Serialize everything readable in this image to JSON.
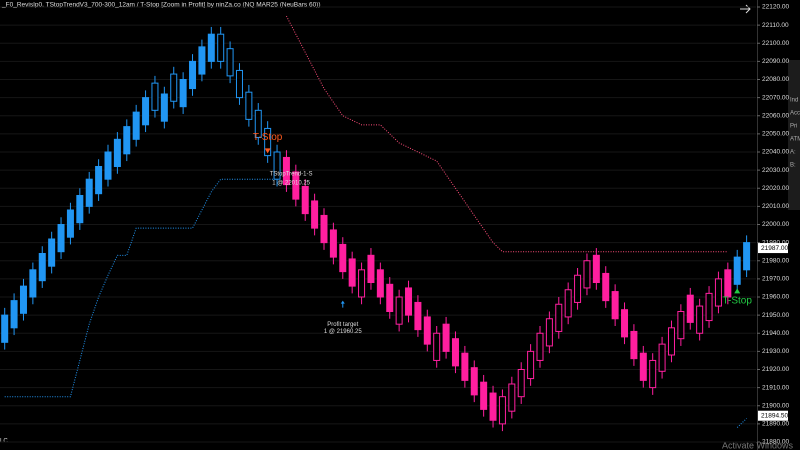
{
  "chart_data": {
    "type": "candlestick",
    "title": "_F0_RevisIp0, TStopTrendV3_700-300_12am / T-Stop [Zoom in Profit] by ninZa.co (NQ MAR25 (NeuBars 60))",
    "ylim": [
      21880,
      22120
    ],
    "xlim": [
      -0.5,
      80
    ],
    "yticks": [
      {
        "value": 21880,
        "label": "21880.00"
      },
      {
        "value": 21890,
        "label": "21890.00"
      },
      {
        "value": 21900,
        "label": "21900.00"
      },
      {
        "value": 21910,
        "label": "21910.00"
      },
      {
        "value": 21920,
        "label": "21920.00"
      },
      {
        "value": 21930,
        "label": "21930.00"
      },
      {
        "value": 21940,
        "label": "21940.00"
      },
      {
        "value": 21950,
        "label": "21950.00"
      },
      {
        "value": 21960,
        "label": "21960.00"
      },
      {
        "value": 21970,
        "label": "21970.00"
      },
      {
        "value": 21980,
        "label": "21980.00"
      },
      {
        "value": 21990,
        "label": "21990.00"
      },
      {
        "value": 22000,
        "label": "22000.00"
      },
      {
        "value": 22010,
        "label": "22010.00"
      },
      {
        "value": 22020,
        "label": "22020.00"
      },
      {
        "value": 22030,
        "label": "22030.00"
      },
      {
        "value": 22040,
        "label": "22040.00"
      },
      {
        "value": 22050,
        "label": "22050.00"
      },
      {
        "value": 22060,
        "label": "22060.00"
      },
      {
        "value": 22070,
        "label": "22070.00"
      },
      {
        "value": 22080,
        "label": "22080.00"
      },
      {
        "value": 22090,
        "label": "22090.00"
      },
      {
        "value": 22100,
        "label": "22100.00"
      },
      {
        "value": 22110,
        "label": "22110.00"
      },
      {
        "value": 22120,
        "label": "22120.00"
      }
    ],
    "grid": true,
    "series": [
      {
        "color": "#2196f3",
        "filled_when": "up",
        "x": [
          0,
          1,
          2,
          3,
          4,
          5,
          6,
          7,
          8,
          9,
          10,
          11,
          12,
          13,
          14,
          15,
          16,
          17,
          18,
          19,
          20,
          21,
          22,
          23,
          24,
          25,
          26,
          27,
          28,
          29,
          78,
          79
        ],
        "open": [
          21935,
          21943,
          21951,
          21960,
          21969,
          21977,
          21985,
          21993,
          22001,
          22010,
          22017,
          22025,
          22032,
          22039,
          22047,
          22055,
          22078,
          22057,
          22083,
          22065,
          22075,
          22083,
          22090,
          22105,
          22097,
          22085,
          22073,
          22063,
          22053,
          22040,
          21967,
          21975
        ],
        "high": [
          21954,
          21962,
          21970,
          21979,
          21988,
          21996,
          22004,
          22012,
          22020,
          22029,
          22036,
          22044,
          22051,
          22058,
          22066,
          22074,
          22082,
          22076,
          22087,
          22084,
          22094,
          22102,
          22109,
          22109,
          22101,
          22089,
          22077,
          22067,
          22057,
          22044,
          21986,
          21994
        ],
        "low": [
          21931,
          21939,
          21947,
          21956,
          21965,
          21973,
          21981,
          21989,
          21997,
          22006,
          22013,
          22021,
          22028,
          22035,
          22043,
          22051,
          22059,
          22053,
          22064,
          22061,
          22071,
          22079,
          22086,
          22086,
          22078,
          22066,
          22054,
          22044,
          22034,
          22021,
          21963,
          21971
        ],
        "close": [
          21950,
          21958,
          21966,
          21975,
          21984,
          21992,
          22000,
          22008,
          22016,
          22025,
          22032,
          22040,
          22047,
          22054,
          22062,
          22070,
          22063,
          22072,
          22068,
          22080,
          22090,
          22098,
          22105,
          22090,
          22082,
          22070,
          22058,
          22048,
          22038,
          22025,
          21982,
          21990
        ]
      },
      {
        "color": "#ff1f9f",
        "filled_when": "down",
        "x": [
          30,
          31,
          32,
          33,
          34,
          35,
          36,
          37,
          38,
          39,
          40,
          41,
          42,
          43,
          44,
          45,
          46,
          47,
          48,
          49,
          50,
          51,
          52,
          53,
          54,
          55,
          56,
          57,
          58,
          59,
          60,
          61,
          62,
          63,
          64,
          65,
          66,
          67,
          68,
          69,
          70,
          71,
          72,
          73,
          74,
          75,
          76,
          77
        ],
        "open": [
          22037,
          22029,
          22021,
          22013,
          22005,
          21997,
          21989,
          21981,
          21960,
          21983,
          21975,
          21967,
          21945,
          21965,
          21957,
          21949,
          21925,
          21945,
          21937,
          21929,
          21921,
          21913,
          21907,
          21890,
          21897,
          21905,
          21915,
          21925,
          21933,
          21941,
          21949,
          21957,
          21965,
          21983,
          21973,
          21963,
          21953,
          21941,
          21929,
          21910,
          21919,
          21928,
          21937,
          21961,
          21940,
          21947,
          21955,
          21975
        ],
        "high": [
          22041,
          22033,
          22025,
          22017,
          22009,
          22001,
          21993,
          21985,
          21979,
          21987,
          21979,
          21971,
          21964,
          21969,
          21961,
          21953,
          21944,
          21949,
          21941,
          21933,
          21925,
          21917,
          21911,
          21909,
          21916,
          21924,
          21934,
          21944,
          21952,
          21960,
          21968,
          21976,
          21984,
          21987,
          21977,
          21967,
          21957,
          21945,
          21933,
          21929,
          21938,
          21947,
          21956,
          21965,
          21959,
          21966,
          21974,
          21979
        ],
        "low": [
          22018,
          22010,
          22002,
          21994,
          21986,
          21978,
          21970,
          21962,
          21956,
          21964,
          21956,
          21948,
          21941,
          21946,
          21938,
          21930,
          21921,
          21926,
          21918,
          21910,
          21902,
          21894,
          21888,
          21886,
          21893,
          21901,
          21911,
          21921,
          21929,
          21937,
          21945,
          21953,
          21961,
          21964,
          21954,
          21944,
          21934,
          21922,
          21910,
          21906,
          21915,
          21924,
          21933,
          21942,
          21936,
          21943,
          21951,
          21956
        ],
        "close": [
          22022,
          22014,
          22006,
          21998,
          21990,
          21982,
          21974,
          21966,
          21975,
          21968,
          21960,
          21952,
          21960,
          21950,
          21942,
          21934,
          21940,
          21930,
          21922,
          21914,
          21906,
          21898,
          21892,
          21905,
          21912,
          21920,
          21930,
          21940,
          21948,
          21956,
          21964,
          21972,
          21980,
          21968,
          21958,
          21948,
          21938,
          21926,
          21914,
          21925,
          21934,
          21943,
          21952,
          21946,
          21955,
          21962,
          21970,
          21960
        ]
      }
    ],
    "stop_lines": [
      {
        "color": "#2196f3",
        "x": [
          0,
          7,
          8,
          9,
          10,
          11,
          12,
          13,
          14,
          20,
          21,
          22,
          23,
          29
        ],
        "values": [
          21905,
          21905,
          21925,
          21945,
          21960,
          21972,
          21983,
          21983,
          21998,
          21998,
          22008,
          22018,
          22025,
          22025
        ]
      },
      {
        "color": "#ff4d7a",
        "x": [
          30,
          32,
          34,
          36,
          38,
          40,
          42,
          44,
          46,
          48,
          50,
          52,
          53,
          77
        ],
        "values": [
          22115,
          22095,
          22075,
          22060,
          22055,
          22055,
          22045,
          22040,
          22035,
          22020,
          22005,
          21990,
          21985,
          21985
        ]
      },
      {
        "color": "#2196f3",
        "x": [
          78,
          79
        ],
        "values": [
          21888,
          21893
        ]
      }
    ],
    "annotations": [
      {
        "text": "T-Stop",
        "x": 28,
        "y": 22048,
        "color": "#ff5a1f"
      },
      {
        "text": "TStopTrend-1-S",
        "x": 30.5,
        "y": 22028,
        "color": "#dddddd"
      },
      {
        "text": "1 @ 22010.25",
        "x": 30.5,
        "y": 22023,
        "color": "#dddddd"
      },
      {
        "text": "Profit target",
        "x": 36,
        "y": 21945,
        "color": "#dddddd"
      },
      {
        "text": "1 @ 21960.25",
        "x": 36,
        "y": 21941,
        "color": "#dddddd"
      },
      {
        "text": "T-Stop",
        "x": 78,
        "y": 21958,
        "color": "#22cc44"
      }
    ],
    "price_markers": [
      {
        "value": 21987,
        "label": "21987.00"
      },
      {
        "value": 21894.5,
        "label": "21894.50"
      }
    ],
    "corner_label": "LC",
    "side_panel": [
      "Ind",
      "Acc",
      "Pri",
      "ATM",
      "A:",
      "B:"
    ],
    "watermark": "Activate Windows"
  }
}
